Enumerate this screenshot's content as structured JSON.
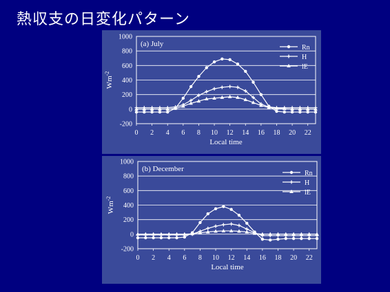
{
  "slide": {
    "title": "熱収支の日変化パターン"
  },
  "colors": {
    "background": "#000080",
    "panel": "#3a4a9a",
    "line": "#ffffff"
  },
  "chart_data": [
    {
      "type": "line",
      "title": "(a)  July",
      "xlabel": "Local time",
      "ylabel": "Wm",
      "ylabel_sup": "-2",
      "xlim": [
        0,
        23
      ],
      "ylim": [
        -200,
        1000
      ],
      "xticks": [
        0,
        2,
        4,
        6,
        8,
        10,
        12,
        14,
        16,
        18,
        20,
        22
      ],
      "yticks": [
        -200,
        0,
        200,
        400,
        600,
        800,
        1000
      ],
      "grid": "horizontal",
      "legend_position": "top-right",
      "x": [
        0,
        1,
        2,
        3,
        4,
        5,
        6,
        7,
        8,
        9,
        10,
        11,
        12,
        13,
        14,
        15,
        16,
        17,
        18,
        19,
        20,
        21,
        22,
        23
      ],
      "series": [
        {
          "name": "Rn",
          "marker": "circle",
          "values": [
            -40,
            -40,
            -40,
            -40,
            -40,
            10,
            150,
            310,
            450,
            570,
            650,
            690,
            680,
            620,
            520,
            370,
            200,
            40,
            -30,
            -40,
            -40,
            -40,
            -40,
            -40
          ]
        },
        {
          "name": "H",
          "marker": "plus",
          "values": [
            20,
            20,
            20,
            20,
            20,
            30,
            60,
            120,
            190,
            240,
            280,
            300,
            310,
            300,
            250,
            160,
            70,
            30,
            20,
            20,
            20,
            20,
            20,
            20
          ]
        },
        {
          "name": "lE",
          "marker": "triangle",
          "values": [
            0,
            0,
            0,
            0,
            0,
            10,
            40,
            80,
            110,
            140,
            150,
            160,
            170,
            160,
            130,
            90,
            50,
            20,
            10,
            5,
            0,
            0,
            0,
            0
          ]
        }
      ]
    },
    {
      "type": "line",
      "title": "(b)   December",
      "xlabel": "Local time",
      "ylabel": "Wm",
      "ylabel_sup": "-2",
      "xlim": [
        0,
        23
      ],
      "ylim": [
        -200,
        1000
      ],
      "xticks": [
        0,
        2,
        4,
        6,
        8,
        10,
        12,
        14,
        16,
        18,
        20,
        22
      ],
      "yticks": [
        -200,
        0,
        200,
        400,
        600,
        800,
        1000
      ],
      "grid": "horizontal",
      "legend_position": "top-right",
      "x": [
        0,
        1,
        2,
        3,
        4,
        5,
        6,
        7,
        8,
        9,
        10,
        11,
        12,
        13,
        14,
        15,
        16,
        17,
        18,
        19,
        20,
        21,
        22,
        23
      ],
      "series": [
        {
          "name": "Rn",
          "marker": "circle",
          "values": [
            -50,
            -50,
            -50,
            -50,
            -50,
            -50,
            -40,
            20,
            160,
            280,
            350,
            380,
            340,
            260,
            150,
            30,
            -70,
            -80,
            -70,
            -60,
            -60,
            -60,
            -60,
            -60
          ]
        },
        {
          "name": "H",
          "marker": "plus",
          "values": [
            -10,
            -10,
            -10,
            -10,
            -10,
            -10,
            -10,
            0,
            40,
            80,
            110,
            130,
            140,
            120,
            70,
            20,
            -20,
            -20,
            -20,
            -20,
            -20,
            -20,
            -20,
            -20
          ]
        },
        {
          "name": "lE",
          "marker": "triangle",
          "values": [
            0,
            0,
            0,
            0,
            0,
            0,
            0,
            5,
            20,
            30,
            40,
            45,
            45,
            40,
            30,
            10,
            0,
            0,
            0,
            0,
            0,
            0,
            0,
            0
          ]
        }
      ]
    }
  ]
}
